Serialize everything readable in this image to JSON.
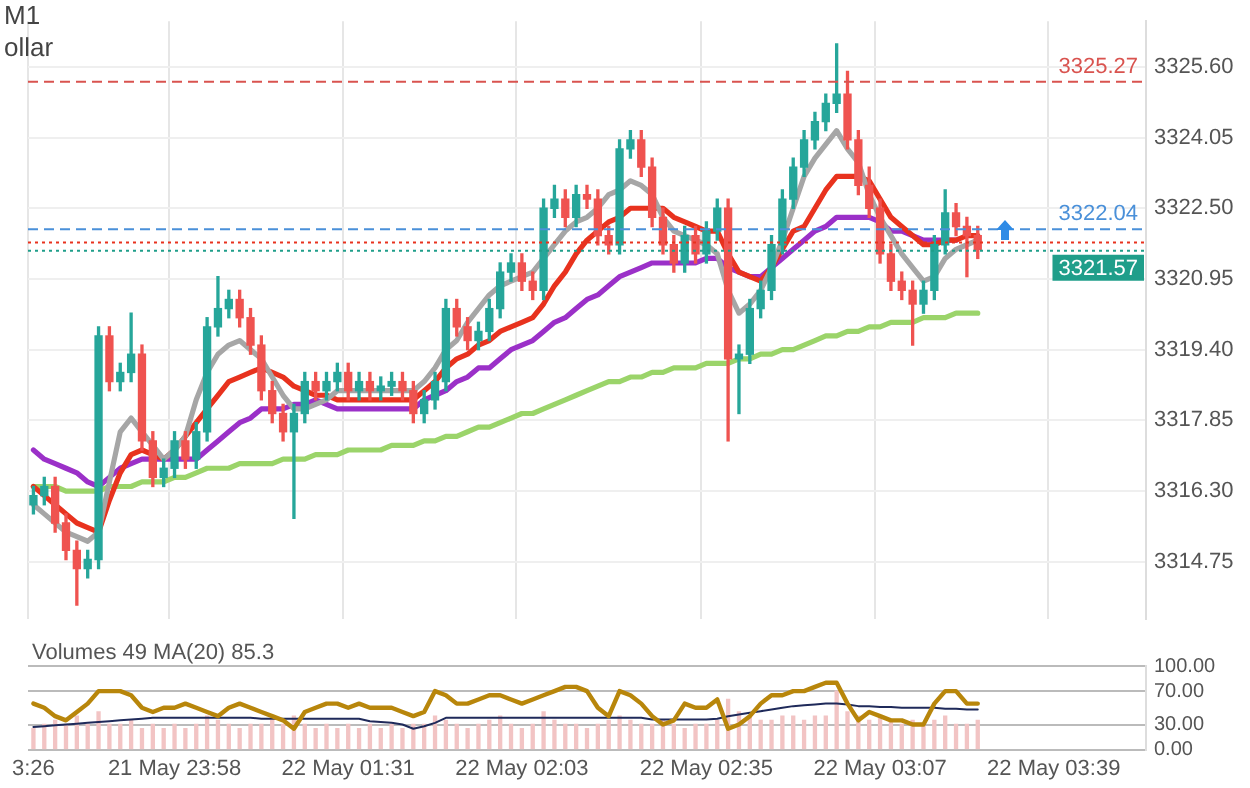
{
  "chart_data": [
    {
      "type": "candlestick",
      "title": "M1",
      "subtitle": "ollar",
      "grid": true,
      "tick_labels": "y",
      "categories": [
        null,
        null,
        null,
        null,
        null,
        null,
        null,
        null,
        null,
        null,
        null,
        null,
        null,
        null,
        null,
        null,
        null,
        null,
        null,
        null,
        null,
        null,
        null,
        null,
        null,
        null,
        null,
        null,
        null,
        null,
        null,
        null,
        null,
        null,
        null,
        null,
        null,
        null,
        null,
        null,
        null,
        null,
        null,
        null,
        null,
        null,
        null,
        null,
        null,
        null,
        null,
        null,
        null,
        null,
        null,
        null,
        null,
        null,
        null,
        null,
        null,
        null,
        null,
        null,
        null,
        null,
        null,
        null,
        null,
        null,
        null,
        null,
        null,
        null,
        null,
        null,
        null,
        null,
        null,
        null,
        null,
        null,
        null,
        null,
        null,
        null,
        null,
        null,
        null,
        null,
        null,
        null,
        null,
        null,
        null,
        null,
        null,
        null,
        null,
        null,
        null,
        null,
        null
      ],
      "ohlc": [
        [
          3316.0,
          3316.4,
          3315.8,
          3316.2
        ],
        [
          3316.2,
          3316.6,
          3316.0,
          3316.4
        ],
        [
          3316.4,
          3316.6,
          3315.4,
          3315.6
        ],
        [
          3315.6,
          3315.8,
          3314.8,
          3315.0
        ],
        [
          3315.0,
          3315.2,
          3313.8,
          3314.6
        ],
        [
          3314.6,
          3315.0,
          3314.4,
          3314.8
        ],
        [
          3314.8,
          3319.9,
          3314.6,
          3319.7
        ],
        [
          3319.7,
          3319.9,
          3318.5,
          3318.7
        ],
        [
          3318.7,
          3319.1,
          3318.5,
          3318.9
        ],
        [
          3318.9,
          3320.2,
          3318.7,
          3319.3
        ],
        [
          3319.3,
          3319.5,
          3317.2,
          3317.4
        ],
        [
          3317.4,
          3317.6,
          3316.4,
          3316.6
        ],
        [
          3316.6,
          3317.0,
          3316.4,
          3316.8
        ],
        [
          3316.8,
          3317.6,
          3316.6,
          3317.4
        ],
        [
          3317.4,
          3317.6,
          3316.8,
          3317.0
        ],
        [
          3317.0,
          3317.8,
          3316.8,
          3317.6
        ],
        [
          3317.6,
          3320.1,
          3317.4,
          3319.9
        ],
        [
          3319.9,
          3321.0,
          3319.7,
          3320.3
        ],
        [
          3320.3,
          3320.7,
          3320.1,
          3320.5
        ],
        [
          3320.5,
          3320.7,
          3319.9,
          3320.1
        ],
        [
          3320.1,
          3320.3,
          3319.3,
          3319.5
        ],
        [
          3319.5,
          3319.7,
          3318.3,
          3318.5
        ],
        [
          3318.5,
          3318.7,
          3317.8,
          3318.0
        ],
        [
          3318.0,
          3318.2,
          3317.4,
          3317.6
        ],
        [
          3317.6,
          3318.2,
          3315.7,
          3318.0
        ],
        [
          3318.0,
          3318.9,
          3317.8,
          3318.7
        ],
        [
          3318.7,
          3318.9,
          3318.3,
          3318.5
        ],
        [
          3318.5,
          3318.9,
          3318.3,
          3318.7
        ],
        [
          3318.7,
          3319.1,
          3318.5,
          3318.9
        ],
        [
          3318.9,
          3319.1,
          3318.3,
          3318.5
        ],
        [
          3318.5,
          3318.9,
          3318.3,
          3318.7
        ],
        [
          3318.7,
          3318.9,
          3318.3,
          3318.5
        ],
        [
          3318.5,
          3318.8,
          3318.3,
          3318.6
        ],
        [
          3318.6,
          3318.9,
          3318.4,
          3318.7
        ],
        [
          3318.7,
          3318.9,
          3318.3,
          3318.5
        ],
        [
          3318.5,
          3318.7,
          3317.8,
          3318.0
        ],
        [
          3318.0,
          3318.5,
          3317.8,
          3318.3
        ],
        [
          3318.3,
          3318.9,
          3318.1,
          3318.7
        ],
        [
          3318.7,
          3320.5,
          3318.5,
          3320.3
        ],
        [
          3320.3,
          3320.5,
          3319.7,
          3319.9
        ],
        [
          3319.9,
          3320.1,
          3319.4,
          3319.6
        ],
        [
          3319.6,
          3320.0,
          3319.4,
          3319.8
        ],
        [
          3319.8,
          3320.5,
          3319.6,
          3320.3
        ],
        [
          3320.3,
          3321.3,
          3320.1,
          3321.1
        ],
        [
          3321.1,
          3321.5,
          3320.9,
          3321.3
        ],
        [
          3321.3,
          3321.5,
          3320.7,
          3320.9
        ],
        [
          3320.9,
          3321.1,
          3320.5,
          3320.7
        ],
        [
          3320.7,
          3322.7,
          3320.5,
          3322.5
        ],
        [
          3322.5,
          3323.0,
          3322.3,
          3322.7
        ],
        [
          3322.7,
          3322.9,
          3322.1,
          3322.3
        ],
        [
          3322.3,
          3323.0,
          3322.1,
          3322.8
        ],
        [
          3322.8,
          3323.0,
          3322.5,
          3322.7
        ],
        [
          3322.7,
          3322.9,
          3321.7,
          3321.9
        ],
        [
          3321.9,
          3322.1,
          3321.5,
          3321.7
        ],
        [
          3321.7,
          3324.0,
          3321.5,
          3323.8
        ],
        [
          3323.8,
          3324.2,
          3323.6,
          3324.0
        ],
        [
          3324.0,
          3324.2,
          3323.2,
          3323.4
        ],
        [
          3323.4,
          3323.6,
          3322.1,
          3322.3
        ],
        [
          3322.3,
          3322.5,
          3321.5,
          3321.7
        ],
        [
          3321.7,
          3321.9,
          3321.1,
          3321.3
        ],
        [
          3321.3,
          3322.1,
          3321.1,
          3321.9
        ],
        [
          3321.9,
          3322.1,
          3321.3,
          3321.5
        ],
        [
          3321.5,
          3322.2,
          3321.3,
          3322.0
        ],
        [
          3322.0,
          3322.7,
          3321.8,
          3322.5
        ],
        [
          3322.5,
          3322.7,
          3317.4,
          3319.2
        ],
        [
          3319.2,
          3319.5,
          3318.0,
          3319.3
        ],
        [
          3319.3,
          3320.5,
          3319.1,
          3320.3
        ],
        [
          3320.3,
          3320.9,
          3320.1,
          3320.7
        ],
        [
          3320.7,
          3321.9,
          3320.5,
          3321.7
        ],
        [
          3321.7,
          3322.9,
          3321.5,
          3322.7
        ],
        [
          3322.7,
          3323.6,
          3322.5,
          3323.4
        ],
        [
          3323.4,
          3324.2,
          3323.2,
          3324.0
        ],
        [
          3324.0,
          3324.6,
          3323.8,
          3324.4
        ],
        [
          3324.4,
          3325.0,
          3324.2,
          3324.8
        ],
        [
          3324.8,
          3326.1,
          3324.6,
          3325.0
        ],
        [
          3325.0,
          3325.5,
          3323.8,
          3324.0
        ],
        [
          3324.0,
          3324.2,
          3322.8,
          3323.0
        ],
        [
          3323.0,
          3323.4,
          3322.3,
          3322.5
        ],
        [
          3322.5,
          3322.7,
          3321.3,
          3321.5
        ],
        [
          3321.5,
          3321.7,
          3320.7,
          3320.9
        ],
        [
          3320.9,
          3321.1,
          3320.5,
          3320.7
        ],
        [
          3320.7,
          3320.9,
          3319.5,
          3320.4
        ],
        [
          3320.4,
          3320.9,
          3320.2,
          3320.7
        ],
        [
          3320.7,
          3321.9,
          3320.5,
          3321.7
        ],
        [
          3321.7,
          3322.9,
          3321.5,
          3322.4
        ],
        [
          3322.4,
          3322.6,
          3321.9,
          3322.1
        ],
        [
          3322.1,
          3322.3,
          3321.0,
          3321.9
        ],
        [
          3321.9,
          3322.1,
          3321.4,
          3321.6
        ],
        null,
        null,
        null,
        null,
        null,
        null,
        null,
        null,
        null,
        null,
        null,
        null,
        null,
        null,
        null
      ],
      "series": [
        {
          "type": "line",
          "color": "#a6a6a6",
          "values": [
            3316.0,
            3315.8,
            3315.6,
            3315.4,
            3315.3,
            3315.2,
            3315.4,
            3316.5,
            3317.6,
            3317.9,
            3317.6,
            3317.3,
            3317.0,
            3317.2,
            3317.5,
            3318.3,
            3318.9,
            3319.3,
            3319.5,
            3319.6,
            3319.4,
            3319.2,
            3318.8,
            3318.4,
            3318.1,
            3318.1,
            3318.2,
            3318.3,
            3318.5,
            3318.5,
            3318.5,
            3318.5,
            3318.5,
            3318.5,
            3318.5,
            3318.5,
            3318.7,
            3319.0,
            3319.4,
            3319.6,
            3320.0,
            3320.3,
            3320.6,
            3320.8,
            3320.9,
            3321.0,
            3321.1,
            3321.4,
            3321.7,
            3322.0,
            3322.2,
            3322.3,
            3322.5,
            3322.8,
            3322.9,
            3323.1,
            3323.0,
            3322.8,
            3322.3,
            3322.0,
            3321.9,
            3321.8,
            3321.7,
            3321.5,
            3320.7,
            3320.2,
            3320.4,
            3320.7,
            3321.2,
            3321.8,
            3322.5,
            3323.2,
            3323.6,
            3323.9,
            3324.2,
            3323.8,
            3323.5,
            3322.8,
            3322.3,
            3321.9,
            3321.5,
            3321.2,
            3320.9,
            3321.0,
            3321.4,
            3321.6,
            3321.7,
            3321.8,
            null,
            null,
            null,
            null,
            null,
            null,
            null,
            null,
            null,
            null,
            null,
            null,
            null,
            null,
            null
          ]
        },
        {
          "type": "line",
          "color": "#e8321e",
          "values": [
            3316.4,
            3316.2,
            3316.0,
            3315.8,
            3315.6,
            3315.5,
            3315.4,
            3316.1,
            3316.7,
            3317.1,
            3317.2,
            3317.1,
            3317.0,
            3317.2,
            3317.5,
            3317.8,
            3318.1,
            3318.4,
            3318.7,
            3318.8,
            3318.9,
            3319.0,
            3318.9,
            3318.8,
            3318.6,
            3318.5,
            3318.4,
            3318.4,
            3318.3,
            3318.3,
            3318.3,
            3318.3,
            3318.3,
            3318.3,
            3318.3,
            3318.3,
            3318.5,
            3318.7,
            3319.0,
            3319.2,
            3319.3,
            3319.5,
            3319.6,
            3319.8,
            3319.9,
            3320.0,
            3320.1,
            3320.4,
            3320.8,
            3321.1,
            3321.5,
            3321.8,
            3322.0,
            3322.2,
            3322.3,
            3322.5,
            3322.5,
            3322.5,
            3322.5,
            3322.3,
            3322.2,
            3322.1,
            3322.0,
            3322.0,
            3321.5,
            3321.1,
            3321.0,
            3320.9,
            3321.2,
            3321.6,
            3322.0,
            3322.1,
            3322.5,
            3322.9,
            3323.2,
            3323.2,
            3323.2,
            3323.1,
            3322.7,
            3322.3,
            3322.1,
            3321.9,
            3321.7,
            3321.7,
            3321.8,
            3321.8,
            3321.9,
            3321.9,
            null,
            null,
            null,
            null,
            null,
            null,
            null,
            null,
            null,
            null,
            null,
            null,
            null,
            null,
            null
          ]
        },
        {
          "type": "line",
          "color": "#9b30c8",
          "values": [
            3317.2,
            3317.0,
            3316.9,
            3316.8,
            3316.7,
            3316.5,
            3316.4,
            3316.6,
            3316.8,
            3316.9,
            3317.0,
            3317.0,
            3317.0,
            3317.0,
            3317.0,
            3317.0,
            3317.2,
            3317.4,
            3317.6,
            3317.8,
            3317.9,
            3318.1,
            3318.1,
            3318.1,
            3318.2,
            3318.2,
            3318.3,
            3318.2,
            3318.1,
            3318.1,
            3318.1,
            3318.1,
            3318.1,
            3318.1,
            3318.1,
            3318.1,
            3318.3,
            3318.4,
            3318.5,
            3318.7,
            3318.8,
            3319.0,
            3319.0,
            3319.2,
            3319.4,
            3319.5,
            3319.6,
            3319.8,
            3320.0,
            3320.1,
            3320.3,
            3320.5,
            3320.6,
            3320.8,
            3321.0,
            3321.1,
            3321.2,
            3321.3,
            3321.3,
            3321.3,
            3321.3,
            3321.3,
            3321.4,
            3321.4,
            3321.2,
            3321.1,
            3321.0,
            3321.0,
            3321.2,
            3321.4,
            3321.6,
            3321.8,
            3322.0,
            3322.1,
            3322.3,
            3322.3,
            3322.3,
            3322.3,
            3322.2,
            3322.0,
            3322.0,
            3321.9,
            3321.8,
            3321.8,
            3321.8,
            3321.8,
            null,
            null,
            null,
            null,
            null,
            null,
            null,
            null,
            null,
            null,
            null,
            null,
            null,
            null,
            null,
            null,
            null
          ]
        },
        {
          "type": "line",
          "color": "#9bd46a",
          "values": [
            3316.4,
            3316.4,
            3316.4,
            3316.3,
            3316.3,
            3316.3,
            3316.3,
            3316.4,
            3316.4,
            3316.4,
            3316.5,
            3316.5,
            3316.5,
            3316.6,
            3316.6,
            3316.7,
            3316.8,
            3316.8,
            3316.8,
            3316.9,
            3316.9,
            3316.9,
            3316.9,
            3317.0,
            3317.0,
            3317.0,
            3317.1,
            3317.1,
            3317.1,
            3317.2,
            3317.2,
            3317.2,
            3317.2,
            3317.3,
            3317.3,
            3317.3,
            3317.4,
            3317.4,
            3317.5,
            3317.5,
            3317.6,
            3317.7,
            3317.7,
            3317.8,
            3317.9,
            3318.0,
            3318.0,
            3318.1,
            3318.2,
            3318.3,
            3318.4,
            3318.5,
            3318.6,
            3318.7,
            3318.7,
            3318.8,
            3318.8,
            3318.9,
            3318.9,
            3319.0,
            3319.0,
            3319.0,
            3319.1,
            3319.1,
            3319.1,
            3319.2,
            3319.2,
            3319.3,
            3319.3,
            3319.4,
            3319.4,
            3319.5,
            3319.6,
            3319.7,
            3319.7,
            3319.8,
            3319.8,
            3319.9,
            3319.9,
            3320.0,
            3320.0,
            3320.0,
            3320.1,
            3320.1,
            3320.1,
            3320.2,
            3320.2,
            3320.2,
            null,
            null,
            null,
            null,
            null,
            null,
            null,
            null,
            null,
            null,
            null,
            null,
            null,
            null,
            null
          ]
        }
      ],
      "ylim": [
        3313.5,
        3326.6
      ],
      "yticks": [
        {
          "value": 3314.75,
          "label": "3314.75"
        },
        {
          "value": 3316.3,
          "label": "3316.30"
        },
        {
          "value": 3317.85,
          "label": "3317.85"
        },
        {
          "value": 3319.4,
          "label": "3319.40"
        },
        {
          "value": 3320.95,
          "label": "3320.95"
        },
        {
          "value": 3322.5,
          "label": "3322.50"
        },
        {
          "value": 3324.05,
          "label": "3324.05"
        },
        {
          "value": 3325.6,
          "label": "3325.60"
        }
      ],
      "ref_lines": [
        {
          "axis": "y",
          "value": 3325.27,
          "label": "3325.27",
          "color": "#d9534f",
          "line_style": "dashed"
        },
        {
          "axis": "y",
          "value": 3322.04,
          "label": "3322.04",
          "color": "#4a90d9",
          "line_style": "dashed"
        },
        {
          "axis": "y",
          "value": 3321.75,
          "color": "#e8321e",
          "line_style": "dotted"
        },
        {
          "axis": "y",
          "value": 3321.57,
          "label": "3321.57",
          "color": "#1f9e8a",
          "line_style": "dotted"
        }
      ]
    },
    {
      "type": "line",
      "grid": "y",
      "annotations": [
        "Volumes 49 MA(20) 85.3"
      ],
      "categories": [
        "3:26",
        null,
        null,
        null,
        null,
        null,
        null,
        null,
        null,
        null,
        null,
        null,
        null,
        "21 May 23:58",
        null,
        null,
        null,
        null,
        null,
        null,
        null,
        null,
        null,
        null,
        null,
        null,
        null,
        null,
        null,
        "22 May 01:31",
        null,
        null,
        null,
        null,
        null,
        null,
        null,
        null,
        null,
        null,
        null,
        null,
        null,
        null,
        null,
        "22 May 02:03",
        null,
        null,
        null,
        null,
        null,
        null,
        null,
        null,
        null,
        null,
        null,
        null,
        null,
        null,
        null,
        null,
        "22 May 02:35",
        null,
        null,
        null,
        null,
        null,
        null,
        null,
        null,
        null,
        null,
        null,
        null,
        null,
        null,
        null,
        "22 May 03:07",
        null,
        null,
        null,
        null,
        null,
        null,
        null,
        null,
        null,
        null,
        null,
        null,
        null,
        null,
        null,
        "22 May 03:39",
        null,
        null,
        null,
        null,
        null,
        null,
        null,
        null
      ],
      "series": [
        {
          "type": "bar",
          "color": "#f2c4c4",
          "values": [
            25,
            30,
            35,
            30,
            40,
            30,
            45,
            30,
            30,
            35,
            25,
            30,
            25,
            30,
            25,
            30,
            40,
            35,
            30,
            25,
            30,
            30,
            35,
            30,
            40,
            30,
            25,
            30,
            25,
            30,
            25,
            30,
            25,
            30,
            25,
            30,
            30,
            40,
            35,
            30,
            25,
            30,
            35,
            40,
            30,
            25,
            30,
            45,
            35,
            30,
            30,
            25,
            30,
            35,
            40,
            35,
            30,
            30,
            35,
            30,
            25,
            30,
            30,
            35,
            60,
            45,
            40,
            35,
            35,
            40,
            40,
            35,
            40,
            40,
            70,
            45,
            40,
            35,
            40,
            35,
            30,
            35,
            30,
            35,
            40,
            30,
            30,
            35,
            null,
            null,
            null,
            null,
            null,
            null,
            null,
            null,
            null,
            null,
            null,
            null,
            null,
            null,
            null
          ]
        },
        {
          "type": "line",
          "color": "#b8860b",
          "values": [
            55,
            50,
            40,
            35,
            45,
            55,
            70,
            70,
            70,
            65,
            50,
            45,
            50,
            50,
            55,
            50,
            45,
            40,
            50,
            55,
            50,
            45,
            40,
            35,
            25,
            45,
            50,
            55,
            55,
            50,
            55,
            50,
            50,
            50,
            45,
            40,
            45,
            70,
            65,
            55,
            55,
            60,
            65,
            65,
            60,
            55,
            60,
            65,
            70,
            75,
            75,
            70,
            50,
            40,
            70,
            65,
            55,
            40,
            30,
            35,
            55,
            50,
            50,
            60,
            25,
            30,
            40,
            55,
            65,
            65,
            70,
            70,
            75,
            80,
            80,
            55,
            35,
            45,
            40,
            35,
            35,
            30,
            30,
            55,
            70,
            70,
            55,
            55,
            null,
            null,
            null,
            null,
            null,
            null,
            null,
            null,
            null,
            null,
            null,
            null,
            null,
            null,
            null
          ]
        },
        {
          "type": "line",
          "color": "#1f2a5a",
          "values": [
            27,
            28,
            29,
            30,
            31,
            32,
            33,
            34,
            35,
            36,
            37,
            38,
            38,
            38,
            38,
            38,
            38,
            38,
            38,
            38,
            38,
            37,
            37,
            37,
            37,
            37,
            37,
            37,
            37,
            37,
            37,
            34,
            33,
            32,
            30,
            25,
            28,
            32,
            38,
            38,
            38,
            38,
            38,
            38,
            38,
            38,
            38,
            38,
            38,
            38,
            38,
            38,
            38,
            38,
            38,
            38,
            38,
            36,
            36,
            36,
            36,
            36,
            36,
            37,
            40,
            42,
            44,
            46,
            48,
            50,
            52,
            53,
            54,
            55,
            55,
            54,
            52,
            52,
            51,
            51,
            50,
            50,
            50,
            50,
            49,
            49,
            48,
            48,
            null,
            null,
            null,
            null,
            null,
            null,
            null,
            null,
            null,
            null,
            null,
            null,
            null,
            null,
            null
          ]
        }
      ],
      "ylim": [
        0,
        100
      ],
      "yticks": [
        {
          "value": 0,
          "label": "0.00"
        },
        {
          "value": 30,
          "label": "30.00"
        },
        {
          "value": 70,
          "label": "70.00"
        },
        {
          "value": 100,
          "label": "100.00"
        }
      ]
    }
  ]
}
